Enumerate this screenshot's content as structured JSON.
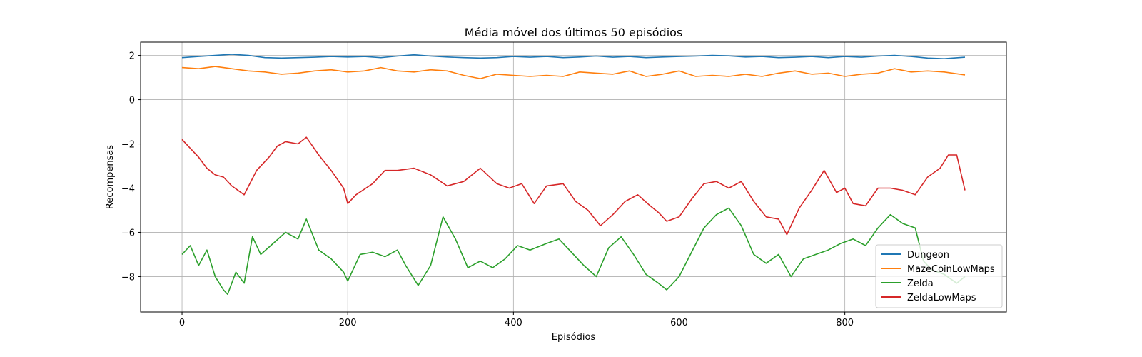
{
  "chart_data": {
    "type": "line",
    "title": "Média móvel dos últimos 50 episódios",
    "xlabel": "Episódios",
    "ylabel": "Recompensas",
    "xlim": [
      -50,
      995
    ],
    "ylim": [
      -9.6,
      2.6
    ],
    "xticks": [
      0,
      200,
      400,
      600,
      800
    ],
    "yticks": [
      2,
      0,
      -2,
      -4,
      -6,
      -8
    ],
    "grid": true,
    "legend_position": "lower-right",
    "series": [
      {
        "name": "Dungeon",
        "color": "#1f77b4",
        "x": [
          0,
          20,
          40,
          60,
          80,
          100,
          120,
          140,
          160,
          180,
          200,
          220,
          240,
          260,
          280,
          300,
          320,
          340,
          360,
          380,
          400,
          420,
          440,
          460,
          480,
          500,
          520,
          540,
          560,
          580,
          600,
          620,
          640,
          660,
          680,
          700,
          720,
          740,
          760,
          780,
          800,
          820,
          840,
          860,
          880,
          900,
          920,
          945
        ],
        "y": [
          1.9,
          1.95,
          2.0,
          2.05,
          2.0,
          1.9,
          1.88,
          1.9,
          1.92,
          1.95,
          1.93,
          1.95,
          1.9,
          1.97,
          2.03,
          1.97,
          1.93,
          1.9,
          1.88,
          1.9,
          1.95,
          1.92,
          1.95,
          1.9,
          1.93,
          1.97,
          1.92,
          1.95,
          1.9,
          1.93,
          1.95,
          1.97,
          2.0,
          1.98,
          1.93,
          1.95,
          1.9,
          1.92,
          1.95,
          1.9,
          1.95,
          1.92,
          1.97,
          2.0,
          1.95,
          1.88,
          1.85,
          1.92
        ]
      },
      {
        "name": "MazeCoinLowMaps",
        "color": "#ff7f0e",
        "x": [
          0,
          20,
          40,
          60,
          80,
          100,
          120,
          140,
          160,
          180,
          200,
          220,
          240,
          260,
          280,
          300,
          320,
          340,
          360,
          380,
          400,
          420,
          440,
          460,
          480,
          500,
          520,
          540,
          560,
          580,
          600,
          620,
          640,
          660,
          680,
          700,
          720,
          740,
          760,
          780,
          800,
          820,
          840,
          860,
          880,
          900,
          920,
          945
        ],
        "y": [
          1.45,
          1.4,
          1.5,
          1.4,
          1.3,
          1.25,
          1.15,
          1.2,
          1.3,
          1.35,
          1.25,
          1.3,
          1.45,
          1.3,
          1.25,
          1.35,
          1.3,
          1.1,
          0.95,
          1.15,
          1.1,
          1.05,
          1.1,
          1.05,
          1.25,
          1.2,
          1.15,
          1.3,
          1.05,
          1.15,
          1.3,
          1.05,
          1.1,
          1.05,
          1.15,
          1.05,
          1.2,
          1.3,
          1.15,
          1.2,
          1.05,
          1.15,
          1.2,
          1.4,
          1.25,
          1.3,
          1.25,
          1.12
        ]
      },
      {
        "name": "Zelda",
        "color": "#2ca02c",
        "x": [
          0,
          10,
          20,
          30,
          40,
          50,
          55,
          65,
          75,
          85,
          95,
          110,
          125,
          140,
          150,
          165,
          180,
          195,
          200,
          215,
          230,
          245,
          260,
          270,
          285,
          300,
          315,
          330,
          345,
          360,
          375,
          390,
          405,
          420,
          440,
          455,
          470,
          485,
          500,
          515,
          530,
          545,
          560,
          575,
          585,
          600,
          615,
          630,
          645,
          660,
          675,
          690,
          705,
          720,
          735,
          750,
          765,
          780,
          795,
          810,
          825,
          840,
          855,
          870,
          885,
          895,
          905,
          920,
          935,
          945
        ],
        "y": [
          -7.0,
          -6.6,
          -7.5,
          -6.8,
          -8.0,
          -8.6,
          -8.8,
          -7.8,
          -8.3,
          -6.2,
          -7.0,
          -6.5,
          -6.0,
          -6.3,
          -5.4,
          -6.8,
          -7.2,
          -7.8,
          -8.2,
          -7.0,
          -6.9,
          -7.1,
          -6.8,
          -7.5,
          -8.4,
          -7.5,
          -5.3,
          -6.3,
          -7.6,
          -7.3,
          -7.6,
          -7.2,
          -6.6,
          -6.8,
          -6.5,
          -6.3,
          -6.9,
          -7.5,
          -8.0,
          -6.7,
          -6.2,
          -7.0,
          -7.9,
          -8.3,
          -8.6,
          -8.0,
          -6.9,
          -5.8,
          -5.2,
          -4.9,
          -5.7,
          -7.0,
          -7.4,
          -7.0,
          -8.0,
          -7.2,
          -7.0,
          -6.8,
          -6.5,
          -6.3,
          -6.6,
          -5.8,
          -5.2,
          -5.6,
          -5.8,
          -7.3,
          -7.7,
          -7.9,
          -8.3,
          -8.0
        ]
      },
      {
        "name": "ZeldaLowMaps",
        "color": "#d62728",
        "x": [
          0,
          10,
          20,
          30,
          40,
          50,
          60,
          75,
          90,
          105,
          115,
          125,
          140,
          150,
          165,
          180,
          195,
          200,
          210,
          230,
          245,
          260,
          280,
          300,
          320,
          340,
          360,
          380,
          395,
          410,
          425,
          440,
          460,
          475,
          490,
          505,
          520,
          535,
          550,
          565,
          575,
          585,
          600,
          615,
          630,
          645,
          660,
          675,
          690,
          705,
          720,
          730,
          745,
          760,
          775,
          790,
          800,
          810,
          825,
          840,
          855,
          870,
          885,
          900,
          915,
          925,
          935,
          945
        ],
        "y": [
          -1.8,
          -2.2,
          -2.6,
          -3.1,
          -3.4,
          -3.5,
          -3.9,
          -4.3,
          -3.2,
          -2.6,
          -2.1,
          -1.9,
          -2.0,
          -1.7,
          -2.5,
          -3.2,
          -4.0,
          -4.7,
          -4.3,
          -3.8,
          -3.2,
          -3.2,
          -3.1,
          -3.4,
          -3.9,
          -3.7,
          -3.1,
          -3.8,
          -4.0,
          -3.8,
          -4.7,
          -3.9,
          -3.8,
          -4.6,
          -5.0,
          -5.7,
          -5.2,
          -4.6,
          -4.3,
          -4.8,
          -5.1,
          -5.5,
          -5.3,
          -4.5,
          -3.8,
          -3.7,
          -4.0,
          -3.7,
          -4.6,
          -5.3,
          -5.4,
          -6.1,
          -4.9,
          -4.1,
          -3.2,
          -4.2,
          -4.0,
          -4.7,
          -4.8,
          -4.0,
          -4.0,
          -4.1,
          -4.3,
          -3.5,
          -3.1,
          -2.5,
          -2.5,
          -4.1
        ]
      }
    ]
  }
}
